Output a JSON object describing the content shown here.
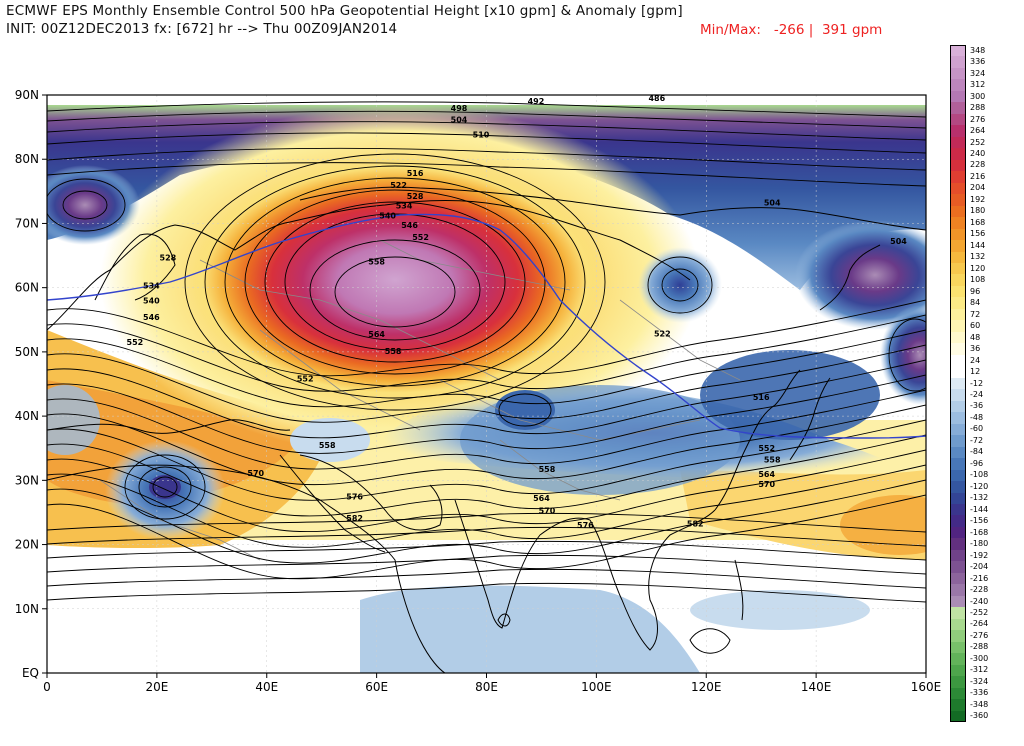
{
  "header": {
    "title_line1": "ECMWF EPS Monthly Ensemble Control 500 hPa Geopotential Height [x10 gpm] & Anomaly [gpm]",
    "title_line2": "INIT: 00Z12DEC2013 fx: [672] hr --> Thu 00Z09JAN2014",
    "minmax_label": "Min/Max:",
    "min_value": "-266",
    "separator": "|",
    "max_value": "391 gpm"
  },
  "axes": {
    "lat_labels": [
      "90N",
      "80N",
      "70N",
      "60N",
      "50N",
      "40N",
      "30N",
      "20N",
      "10N",
      "EQ"
    ],
    "lon_labels": [
      "0",
      "20E",
      "40E",
      "60E",
      "80E",
      "100E",
      "120E",
      "140E",
      "160E"
    ]
  },
  "contour_labels": [
    {
      "text": "486",
      "lon": 111,
      "lat": 89.1
    },
    {
      "text": "492",
      "lon": 89,
      "lat": 88.6
    },
    {
      "text": "498",
      "lon": 75,
      "lat": 87.5
    },
    {
      "text": "504",
      "lon": 75,
      "lat": 85.7
    },
    {
      "text": "510",
      "lon": 79,
      "lat": 83.4
    },
    {
      "text": "516",
      "lon": 67,
      "lat": 77.4
    },
    {
      "text": "522",
      "lon": 64,
      "lat": 75.5
    },
    {
      "text": "528",
      "lon": 67,
      "lat": 73.8
    },
    {
      "text": "534",
      "lon": 65,
      "lat": 72.3
    },
    {
      "text": "540",
      "lon": 62,
      "lat": 70.8
    },
    {
      "text": "546",
      "lon": 66,
      "lat": 69.3
    },
    {
      "text": "552",
      "lon": 68,
      "lat": 67.4
    },
    {
      "text": "558",
      "lon": 60,
      "lat": 63.6
    },
    {
      "text": "564",
      "lon": 60,
      "lat": 52.3
    },
    {
      "text": "558",
      "lon": 63,
      "lat": 49.7
    },
    {
      "text": "552",
      "lon": 47,
      "lat": 45.4
    },
    {
      "text": "528",
      "lon": 22,
      "lat": 64.2
    },
    {
      "text": "534",
      "lon": 19,
      "lat": 59.9
    },
    {
      "text": "540",
      "lon": 19,
      "lat": 57.5
    },
    {
      "text": "546",
      "lon": 19,
      "lat": 55.0
    },
    {
      "text": "552",
      "lon": 16,
      "lat": 51.1
    },
    {
      "text": "522",
      "lon": 112,
      "lat": 52.4
    },
    {
      "text": "504",
      "lon": 132,
      "lat": 72.8
    },
    {
      "text": "504",
      "lon": 155,
      "lat": 66.8
    },
    {
      "text": "516",
      "lon": 130,
      "lat": 42.5
    },
    {
      "text": "558",
      "lon": 51,
      "lat": 35.0
    },
    {
      "text": "570",
      "lon": 38,
      "lat": 30.7
    },
    {
      "text": "576",
      "lon": 56,
      "lat": 27.0
    },
    {
      "text": "582",
      "lon": 56,
      "lat": 23.7
    },
    {
      "text": "558",
      "lon": 91,
      "lat": 31.3
    },
    {
      "text": "564",
      "lon": 90,
      "lat": 26.8
    },
    {
      "text": "570",
      "lon": 91,
      "lat": 24.8
    },
    {
      "text": "576",
      "lon": 98,
      "lat": 22.6
    },
    {
      "text": "582",
      "lon": 118,
      "lat": 22.8
    },
    {
      "text": "552",
      "lon": 131,
      "lat": 34.6
    },
    {
      "text": "558",
      "lon": 132,
      "lat": 32.8
    },
    {
      "text": "564",
      "lon": 131,
      "lat": 30.5
    },
    {
      "text": "570",
      "lon": 131,
      "lat": 29.0
    }
  ],
  "colorbar": {
    "labels": [
      "348",
      "336",
      "324",
      "312",
      "300",
      "288",
      "276",
      "264",
      "252",
      "240",
      "228",
      "216",
      "204",
      "192",
      "180",
      "168",
      "156",
      "144",
      "132",
      "120",
      "108",
      "96",
      "84",
      "72",
      "60",
      "48",
      "36",
      "24",
      "12",
      "-12",
      "-24",
      "-36",
      "-48",
      "-60",
      "-72",
      "-84",
      "-96",
      "-108",
      "-120",
      "-132",
      "-144",
      "-156",
      "-168",
      "-180",
      "-192",
      "-204",
      "-216",
      "-228",
      "-240",
      "-252",
      "-264",
      "-276",
      "-288",
      "-300",
      "-312",
      "-324",
      "-336",
      "-348",
      "-360"
    ],
    "colors": [
      "#d8b0d8",
      "#cfa2cf",
      "#c694c6",
      "#bd86bd",
      "#b478b4",
      "#b0609a",
      "#b34882",
      "#b8306c",
      "#c22a58",
      "#cc2a48",
      "#d6303c",
      "#df3e32",
      "#e44e2a",
      "#e65c24",
      "#ea6e20",
      "#ee8222",
      "#f09428",
      "#f3a632",
      "#f5b83e",
      "#f7c84e",
      "#f9d65e",
      "#fbe270",
      "#fcea86",
      "#fdf09c",
      "#fef5b4",
      "#fff9cc",
      "#fffce4",
      "#ffffff",
      "#ffffff",
      "#ddeaf4",
      "#c8dcee",
      "#b2cde7",
      "#9cbde0",
      "#86acd7",
      "#6f9bcd",
      "#5a89c3",
      "#4877b8",
      "#3b67ad",
      "#3456a0",
      "#334596",
      "#3a358d",
      "#432a87",
      "#512481",
      "#62307f",
      "#704289",
      "#7d5292",
      "#8c649c",
      "#9a77a8",
      "#aa8cb5",
      "#c0e3a4",
      "#a8d98f",
      "#90cd7c",
      "#78c06a",
      "#62b35a",
      "#4ea64c",
      "#3c9840",
      "#2c8a36",
      "#1e7a2c",
      "#136b24"
    ]
  },
  "colors": {
    "jet_line": "#3344cc",
    "contour": "#000000",
    "boundary": "#7a7a7a",
    "coast": "#000000",
    "minmax_text": "#e22222"
  }
}
